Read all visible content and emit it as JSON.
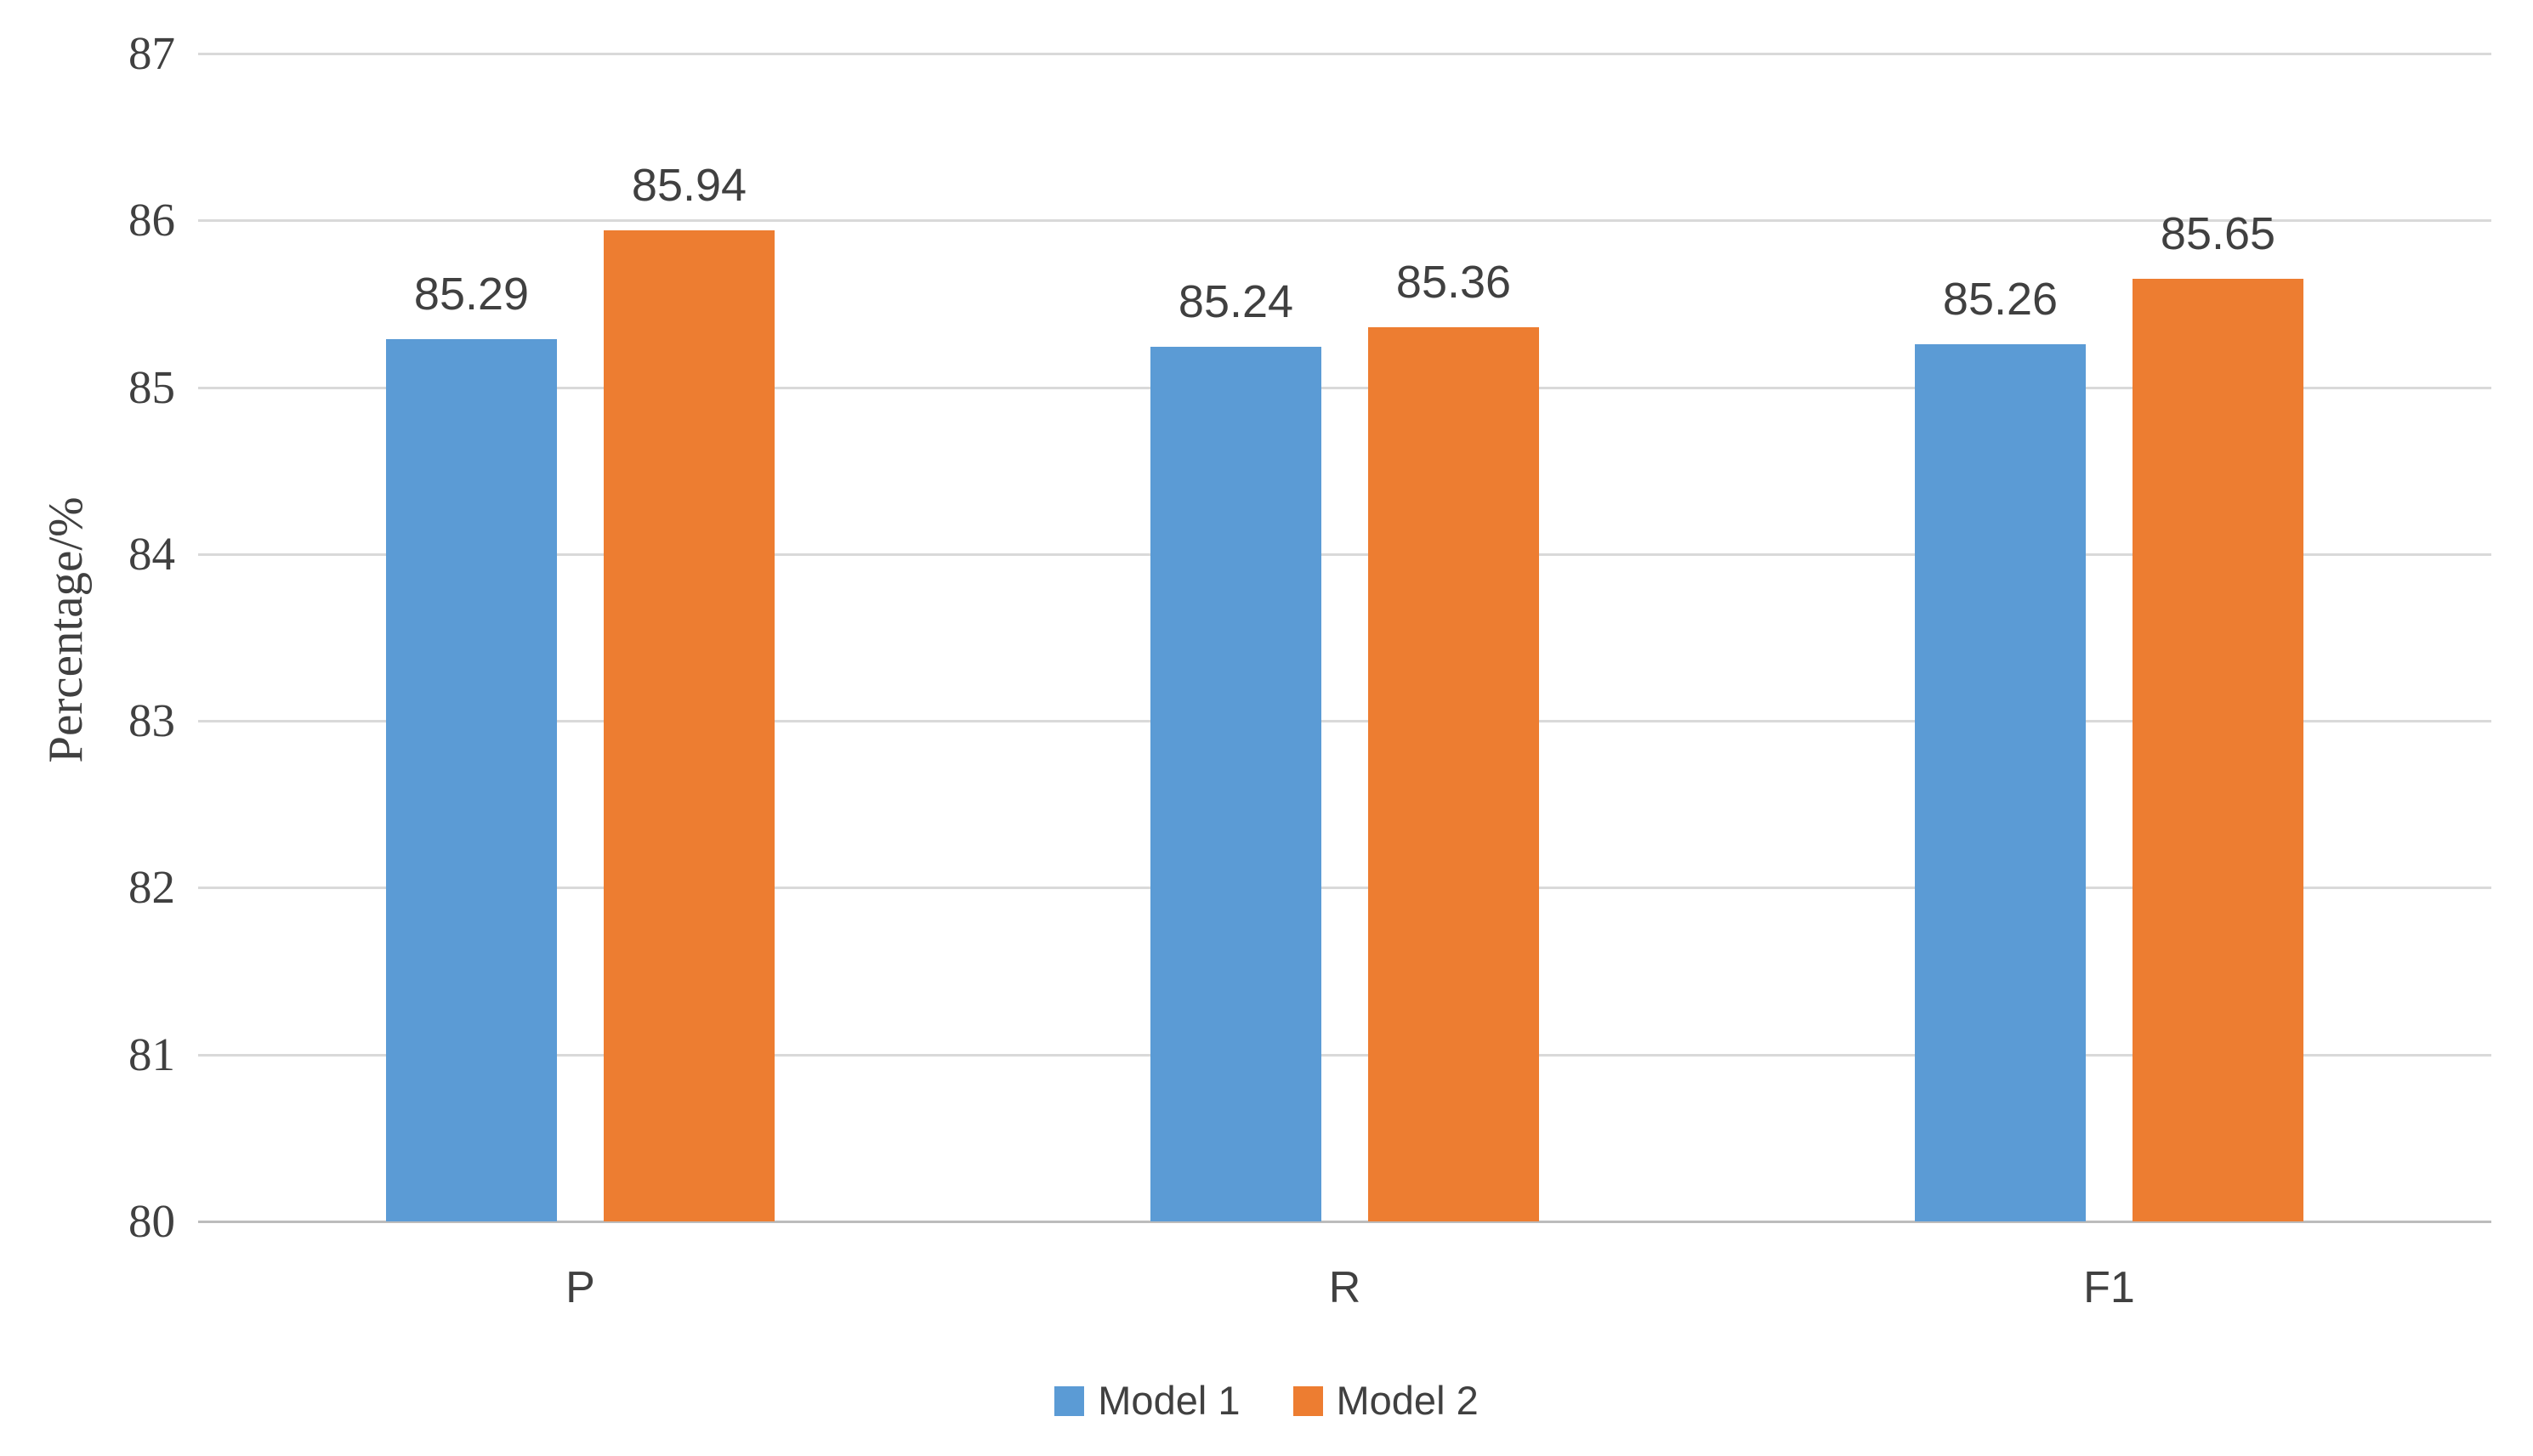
{
  "chart_data": {
    "type": "bar",
    "title": "",
    "categories": [
      "P",
      "R",
      "F1"
    ],
    "series": [
      {
        "name": "Model 1",
        "color": "#5B9BD5",
        "values": [
          85.29,
          85.24,
          85.26
        ],
        "labels": [
          "85.29",
          "85.24",
          "85.26"
        ]
      },
      {
        "name": "Model 2",
        "color": "#ED7D31",
        "values": [
          85.94,
          85.36,
          85.65
        ],
        "labels": [
          "85.94",
          "85.36",
          "85.65"
        ]
      }
    ],
    "xlabel": "",
    "ylabel": "Percentage/%",
    "ylim": [
      80,
      87
    ],
    "ytick_step": 1,
    "yticks": [
      "80",
      "81",
      "82",
      "83",
      "84",
      "85",
      "86",
      "87"
    ],
    "grid": true,
    "legend_position": "bottom",
    "colors": {
      "gridline": "#d9d9d9",
      "axis_line": "#bcbcbc",
      "text": "#404040",
      "background": "#ffffff"
    }
  }
}
